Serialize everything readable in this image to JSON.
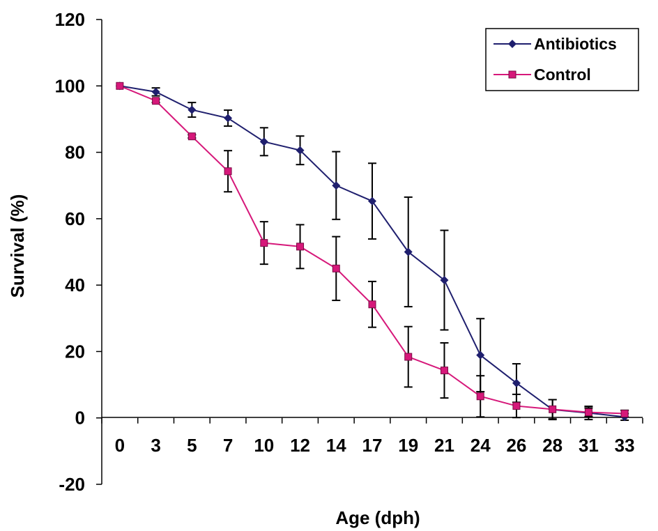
{
  "chart_data": {
    "type": "line",
    "categories": [
      "0",
      "3",
      "5",
      "7",
      "10",
      "12",
      "14",
      "17",
      "19",
      "21",
      "24",
      "26",
      "28",
      "31",
      "33"
    ],
    "xlabel": "Age (dph)",
    "ylabel": "Survival (%)",
    "ylim": [
      -20,
      120
    ],
    "yticks": [
      "-20",
      "0",
      "20",
      "40",
      "60",
      "80",
      "100",
      "120"
    ],
    "grid": false,
    "legend_position": "top-right",
    "series": [
      {
        "name": "Antibiotics",
        "color": "#1f1f6e",
        "marker": "diamond",
        "values": [
          100,
          98.2,
          92.8,
          90.3,
          83.2,
          80.6,
          70,
          65.3,
          50,
          41.5,
          18.9,
          10.5,
          2.5,
          1.5,
          0.3
        ],
        "errors": [
          0,
          1.2,
          2.2,
          2.4,
          4.2,
          4.3,
          10.2,
          11.4,
          16.5,
          15,
          11,
          5.8,
          3,
          2,
          1
        ]
      },
      {
        "name": "Control",
        "color": "#d6187a",
        "marker": "square",
        "values": [
          100,
          95.5,
          84.8,
          74.3,
          52.7,
          51.6,
          45,
          34.2,
          18.4,
          14.3,
          6.5,
          3.6,
          2.6,
          1.7,
          1.3
        ],
        "errors": [
          0,
          0.5,
          0.5,
          6.2,
          6.4,
          6.6,
          9.6,
          6.9,
          9.1,
          8.3,
          6.2,
          3.5,
          2.9,
          1.3,
          1
        ]
      }
    ]
  }
}
